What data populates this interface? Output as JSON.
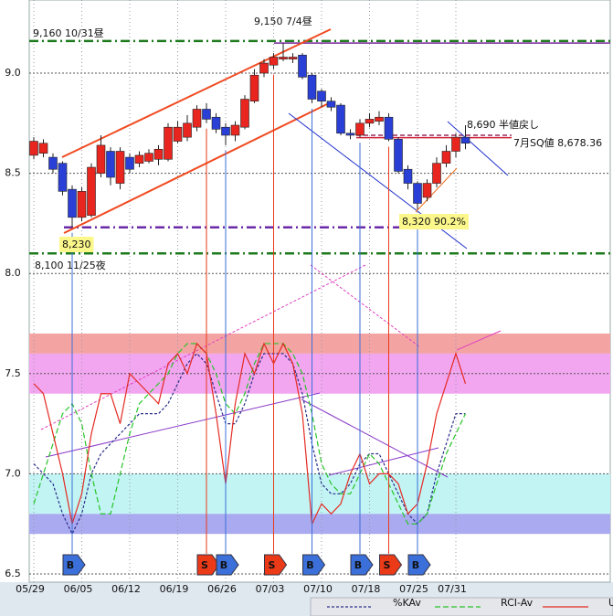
{
  "chart_data": {
    "type": "candlestick",
    "categories": [
      "05/29",
      null,
      null,
      null,
      null,
      "06/05",
      null,
      null,
      null,
      null,
      "06/12",
      null,
      null,
      null,
      null,
      "06/19",
      null,
      null,
      null,
      null,
      "06/26",
      null,
      null,
      null,
      null,
      "07/03",
      null,
      null,
      null,
      null,
      "07/10",
      null,
      null,
      null,
      null,
      "07/18",
      null,
      null,
      null,
      null,
      "07/25",
      null,
      null,
      null,
      "07/31",
      null
    ],
    "open": [
      8.59,
      8.6,
      8.58,
      8.55,
      8.42,
      8.28,
      8.29,
      8.5,
      8.61,
      8.45,
      8.58,
      8.55,
      8.56,
      8.57,
      8.57,
      8.66,
      8.68,
      8.73,
      8.82,
      8.78,
      8.73,
      8.69,
      8.73,
      8.86,
      9.0,
      9.04,
      9.07,
      9.07,
      9.09,
      8.99,
      8.91,
      8.86,
      8.84,
      8.7,
      8.69,
      8.75,
      8.76,
      8.78,
      8.67,
      8.52,
      8.45,
      8.38,
      8.45,
      8.55,
      8.61,
      8.68
    ],
    "high": [
      8.68,
      8.67,
      8.6,
      8.56,
      8.44,
      8.43,
      8.55,
      8.69,
      8.63,
      8.63,
      8.6,
      8.61,
      8.62,
      8.64,
      8.75,
      8.76,
      8.79,
      8.84,
      8.85,
      8.8,
      8.75,
      8.76,
      8.89,
      9.02,
      9.07,
      9.1,
      9.15,
      9.1,
      9.1,
      9.0,
      8.92,
      8.88,
      8.85,
      8.72,
      8.77,
      8.8,
      8.81,
      8.8,
      8.68,
      8.54,
      8.46,
      8.47,
      8.58,
      8.64,
      8.7,
      8.74
    ],
    "low": [
      8.57,
      8.58,
      8.5,
      8.39,
      8.23,
      8.26,
      8.28,
      8.48,
      8.44,
      8.42,
      8.5,
      8.53,
      8.55,
      8.54,
      8.56,
      8.65,
      8.66,
      8.71,
      8.75,
      8.7,
      8.64,
      8.66,
      8.72,
      8.85,
      8.98,
      9.02,
      9.06,
      9.05,
      8.97,
      8.85,
      8.83,
      8.81,
      8.69,
      8.67,
      8.68,
      8.73,
      8.74,
      8.66,
      8.5,
      8.42,
      8.32,
      8.36,
      8.43,
      8.53,
      8.58,
      8.62
    ],
    "close": [
      8.66,
      8.65,
      8.52,
      8.41,
      8.28,
      8.41,
      8.53,
      8.64,
      8.48,
      8.61,
      8.52,
      8.59,
      8.6,
      8.62,
      8.73,
      8.73,
      8.75,
      8.82,
      8.77,
      8.72,
      8.69,
      8.74,
      8.87,
      8.99,
      9.05,
      9.08,
      9.08,
      9.08,
      8.98,
      8.87,
      8.86,
      8.83,
      8.7,
      8.69,
      8.75,
      8.77,
      8.78,
      8.67,
      8.51,
      8.45,
      8.35,
      8.45,
      8.55,
      8.61,
      8.68,
      8.65
    ],
    "up_color": "#e8261f",
    "down_color": "#2a3fd6",
    "ylim": [
      6.459,
      9.365
    ],
    "yticks": [
      6.5,
      {
        "value": 7.0,
        "label": "7.0"
      },
      7.5,
      {
        "value": 8.0,
        "label": "8.0"
      },
      8.5,
      {
        "value": 9.0,
        "label": "9.0"
      }
    ],
    "grid": true,
    "bands": [
      {
        "from": 7.6,
        "to": 7.7,
        "color": "#f4a3a3"
      },
      {
        "from": 7.4,
        "to": 7.6,
        "color": "#f2a6f0"
      },
      {
        "from": 6.8,
        "to": 7.0,
        "color": "#c2f4f4"
      },
      {
        "from": 6.7,
        "to": 6.8,
        "color": "#a9aaf0"
      }
    ],
    "hlines": [
      {
        "value": 9.16,
        "color": "#1d7a1d",
        "style": "dashdot"
      },
      {
        "value": 9.15,
        "color": "#7a2a9a",
        "style": "solid"
      },
      {
        "value": 8.1,
        "color": "#1d7a1d",
        "style": "dashdot"
      },
      {
        "value": 8.23,
        "color": "#6a2aa8",
        "style": "dashdot"
      },
      {
        "value": 8.69,
        "color": "#9a2a5a",
        "style": "dashed"
      },
      {
        "value": 8.678,
        "color": "#d0203a",
        "style": "solid"
      }
    ],
    "annotations": [
      "9,160 10/31昼",
      "9,150 7/4昼",
      "8,100 11/25夜",
      "8,230",
      "8,320 90.2%",
      "8,690 半値戻し",
      "7月SQ値 8,678.36"
    ],
    "signals": [
      null,
      null,
      null,
      null,
      "B",
      null,
      null,
      null,
      null,
      null,
      null,
      null,
      null,
      null,
      null,
      null,
      null,
      null,
      "S",
      null,
      "B",
      null,
      null,
      null,
      null,
      "S",
      null,
      null,
      null,
      "B",
      null,
      null,
      null,
      null,
      "B",
      null,
      null,
      "S",
      null,
      null,
      "B",
      null,
      null,
      null,
      null,
      null
    ],
    "signal_colors": {
      "B": "#3b6fd9",
      "S": "#ea3a18"
    },
    "indicators": [
      {
        "name": "%KAv",
        "color": "#2a2f8a",
        "dash": "3,2",
        "values": [
          7.05,
          7.0,
          6.95,
          6.8,
          6.7,
          6.8,
          7.0,
          7.1,
          7.15,
          7.2,
          7.25,
          7.3,
          7.3,
          7.3,
          7.35,
          7.45,
          7.55,
          7.6,
          7.55,
          7.4,
          7.25,
          7.25,
          7.35,
          7.5,
          7.6,
          7.6,
          7.6,
          7.55,
          7.4,
          7.15,
          6.95,
          6.9,
          6.9,
          6.95,
          7.05,
          7.1,
          7.1,
          7.0,
          6.9,
          6.8,
          6.75,
          6.8,
          7.0,
          7.15,
          7.3,
          7.3
        ]
      },
      {
        "name": "RCI-Av",
        "color": "#28c428",
        "dash": "6,3",
        "values": [
          6.85,
          7.0,
          7.15,
          7.3,
          7.35,
          7.25,
          7.0,
          6.8,
          6.8,
          7.0,
          7.2,
          7.35,
          7.4,
          7.45,
          7.5,
          7.6,
          7.65,
          7.65,
          7.6,
          7.5,
          7.35,
          7.3,
          7.4,
          7.55,
          7.65,
          7.65,
          7.65,
          7.6,
          7.5,
          7.3,
          7.05,
          6.95,
          6.9,
          6.9,
          7.0,
          7.1,
          7.05,
          6.95,
          6.85,
          6.75,
          6.75,
          6.8,
          6.95,
          7.1,
          7.2,
          7.3
        ]
      },
      {
        "name": "UI",
        "color": "#e42a22",
        "dash": "",
        "values": [
          7.45,
          7.4,
          7.2,
          7.0,
          6.75,
          6.9,
          7.2,
          7.4,
          7.4,
          7.25,
          7.5,
          7.45,
          7.4,
          7.35,
          7.55,
          7.6,
          7.5,
          7.65,
          7.6,
          7.3,
          6.95,
          7.35,
          7.6,
          7.5,
          7.65,
          7.55,
          7.65,
          7.55,
          7.3,
          6.75,
          6.85,
          6.8,
          6.85,
          7.0,
          7.1,
          6.95,
          7.0,
          7.0,
          6.95,
          6.8,
          6.85,
          7.05,
          7.3,
          7.45,
          7.6,
          7.45
        ]
      }
    ]
  }
}
